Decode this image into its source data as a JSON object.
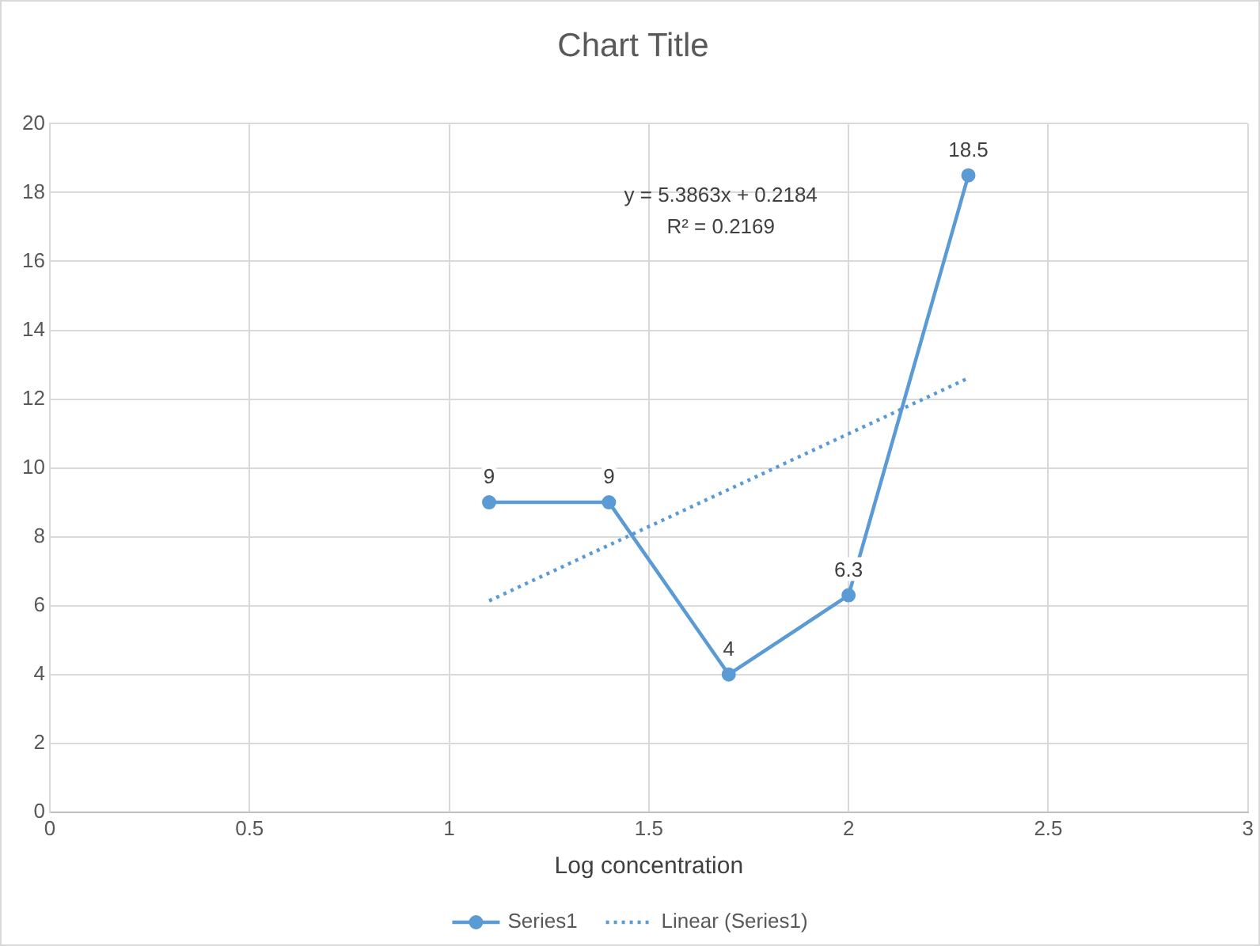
{
  "chart_data": {
    "type": "line",
    "title": "Chart Title",
    "xlabel": "Log concentration",
    "xlim": [
      0,
      3
    ],
    "xticks": [
      0,
      0.5,
      1,
      1.5,
      2,
      2.5,
      3
    ],
    "ylim": [
      0,
      20
    ],
    "yticks": [
      0,
      2,
      4,
      6,
      8,
      10,
      12,
      14,
      16,
      18,
      20
    ],
    "grid": true,
    "legend": "bottom",
    "series": [
      {
        "name": "Series1",
        "color": "#5b9bd5",
        "x": [
          1.1,
          1.4,
          1.7,
          2.0,
          2.3
        ],
        "values": [
          9,
          9,
          4,
          6.3,
          18.5
        ],
        "marker": "circle",
        "value_labels": [
          "9",
          "9",
          "4",
          "6.3",
          "18.5"
        ]
      },
      {
        "name": "Linear (Series1)",
        "color": "#5b9bd5",
        "x": [
          1.1,
          2.3
        ],
        "values": [
          6.14,
          12.61
        ],
        "marker": "none",
        "line_style": "dotted"
      }
    ],
    "annotations": [
      "y = 5.3863x + 0.2184",
      "R² = 0.2169"
    ]
  }
}
